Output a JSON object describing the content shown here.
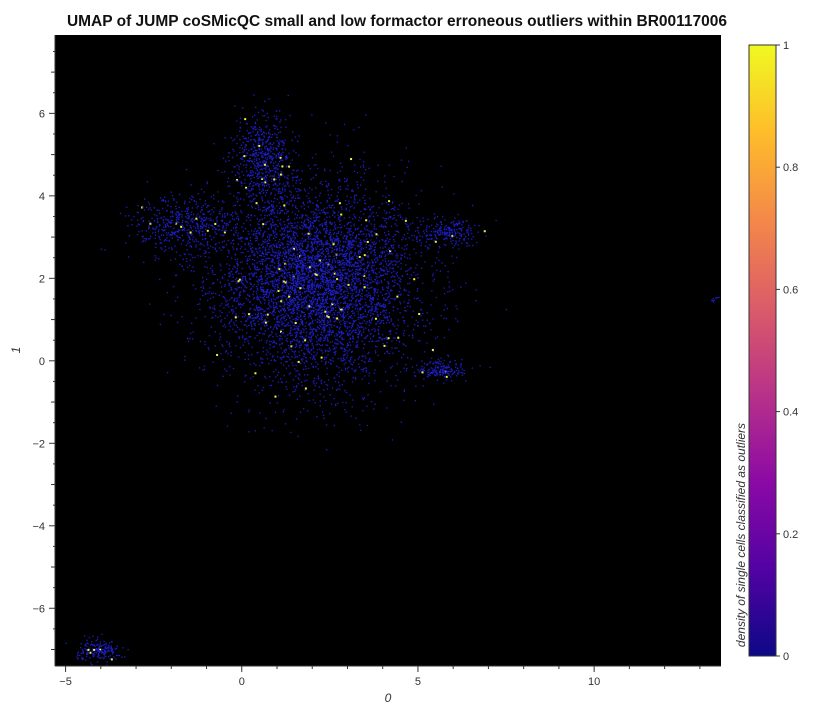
{
  "chart_data": {
    "type": "scatter",
    "title": "UMAP of JUMP coSMicQC small and low formactor erroneous outliers within BR00117006",
    "xlabel": "0",
    "ylabel": "1",
    "xlim": [
      -5.3,
      13.6
    ],
    "ylim": [
      -7.4,
      7.9
    ],
    "xticks": [
      -5,
      0,
      5,
      10
    ],
    "yticks": [
      -6,
      -4,
      -2,
      0,
      2,
      4,
      6
    ],
    "grid": false,
    "background": "#000000",
    "point_color_base": "#1e1ec8",
    "point_color_outlier": "#f2f24a",
    "colorbar": {
      "label": "density of single cells classified as outliers",
      "min": 0,
      "max": 1,
      "ticks": [
        0,
        0.2,
        0.4,
        0.6,
        0.8,
        1
      ],
      "tick_labels": [
        "0",
        "0.2",
        "0.4",
        "0.6",
        "0.8",
        "1"
      ],
      "colormap": "plasma",
      "colors": [
        "#0d0887",
        "#5302a3",
        "#8b0aa5",
        "#b83289",
        "#db5c68",
        "#f48849",
        "#febd2a",
        "#f0f921"
      ]
    },
    "clusters": [
      {
        "center": [
          2.1,
          1.9
        ],
        "spread": [
          2.3,
          1.9
        ],
        "points": 5200
      },
      {
        "center": [
          0.6,
          4.9
        ],
        "spread": [
          0.7,
          0.9
        ],
        "points": 600
      },
      {
        "center": [
          -1.6,
          3.3
        ],
        "spread": [
          1.2,
          0.6
        ],
        "points": 500
      },
      {
        "center": [
          5.8,
          3.1
        ],
        "spread": [
          0.7,
          0.3
        ],
        "points": 220
      },
      {
        "center": [
          5.6,
          -0.2
        ],
        "spread": [
          0.6,
          0.2
        ],
        "points": 180
      },
      {
        "center": [
          -4.1,
          -7.0
        ],
        "spread": [
          0.5,
          0.2
        ],
        "points": 180
      },
      {
        "center": [
          13.4,
          1.5
        ],
        "spread": [
          0.1,
          0.08
        ],
        "points": 10
      }
    ]
  }
}
